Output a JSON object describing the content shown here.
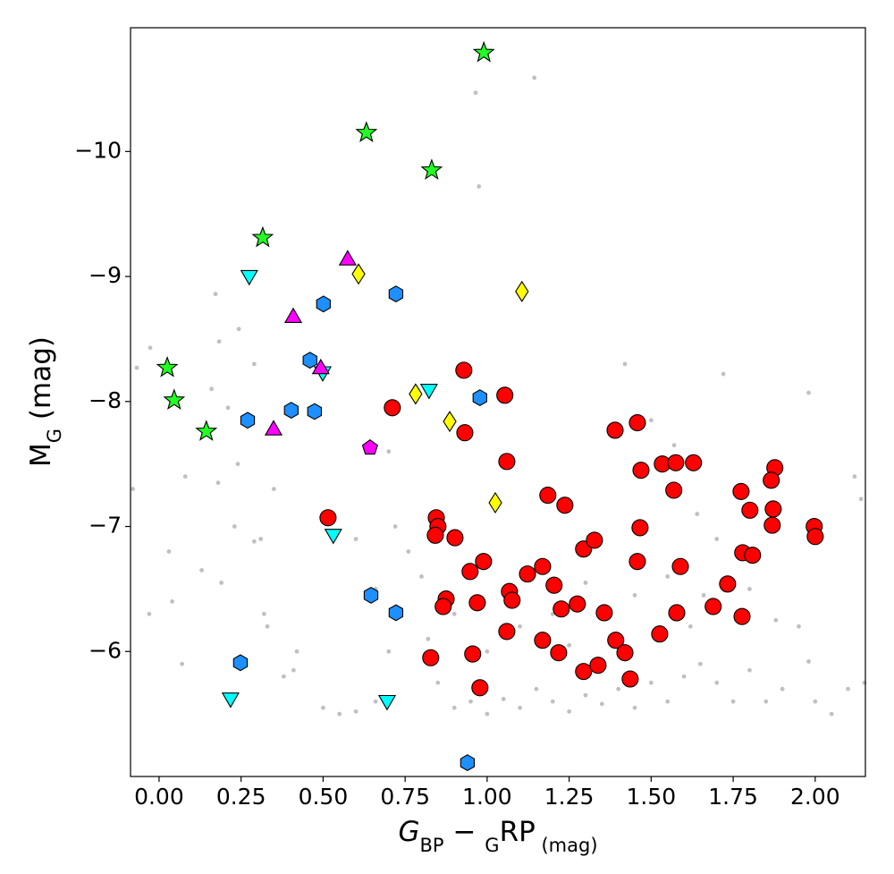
{
  "chart_data": {
    "type": "scatter",
    "xlabel_parts": [
      "G",
      "BP",
      " − ",
      "G",
      "RP",
      " (mag)"
    ],
    "ylabel_parts": [
      "M",
      "G",
      " (mag)"
    ],
    "xlim": [
      -0.087,
      2.153
    ],
    "ylim": [
      -5.0,
      -10.99
    ],
    "xticks": [
      {
        "value": 0,
        "label": "0.00"
      },
      {
        "value": 0.25,
        "label": "0.25"
      },
      {
        "value": 0.5,
        "label": "0.50"
      },
      {
        "value": 0.75,
        "label": "0.75"
      },
      {
        "value": 1,
        "label": "1.00"
      },
      {
        "value": 1.25,
        "label": "1.25"
      },
      {
        "value": 1.5,
        "label": "1.50"
      },
      {
        "value": 1.75,
        "label": "1.75"
      },
      {
        "value": 2,
        "label": "2.00"
      }
    ],
    "yticks": [
      {
        "value": -10,
        "label": "−10"
      },
      {
        "value": -9,
        "label": "−9"
      },
      {
        "value": -8,
        "label": "−8"
      },
      {
        "value": -7,
        "label": "−7"
      },
      {
        "value": -6,
        "label": "−6"
      }
    ],
    "series": [
      {
        "color": "#c0c0c0",
        "marker": "dot",
        "x": [
          0.965,
          1.144,
          0.975,
          0.172,
          0.183,
          -0.027,
          -0.068,
          0.243,
          0.29,
          0.16,
          0.21,
          0.08,
          0.18,
          0.24,
          0.35,
          -0.08,
          0.23,
          0.29,
          0.31,
          0.19,
          0.13,
          0.04,
          -0.03,
          0.32,
          0.33,
          0.07,
          0.42,
          0.41,
          0.38,
          0.5,
          0.55,
          0.6,
          0.66,
          0.7,
          0.66,
          0.6,
          0.7,
          0.72,
          0.76,
          0.8,
          0.82,
          0.85,
          0.9,
          0.95,
          1.0,
          1.05,
          1.1,
          1.15,
          1.2,
          1.25,
          1.3,
          1.35,
          1.4,
          1.45,
          1.5,
          1.55,
          1.6,
          1.65,
          1.7,
          1.75,
          1.8,
          1.85,
          1.9,
          2.0,
          2.05,
          2.1,
          2.15,
          1.98,
          1.95,
          2.12,
          2.14,
          1.98,
          1.72,
          1.42,
          1.5,
          1.57,
          1.64,
          1.7,
          1.3,
          1.2,
          1.1,
          1.0,
          0.9,
          1.25,
          1.45,
          1.55,
          1.62,
          1.66,
          1.8,
          1.88,
          0.03
        ],
        "values": [
          -10.47,
          -10.59,
          -9.72,
          -8.86,
          -8.48,
          -8.43,
          -8.27,
          -8.58,
          -8.3,
          -8.1,
          -7.95,
          -7.4,
          -7.35,
          -7.5,
          -7.3,
          -7.3,
          -7.0,
          -6.88,
          -6.9,
          -6.55,
          -6.65,
          -6.4,
          -6.3,
          -6.3,
          -6.2,
          -5.9,
          -6.0,
          -5.85,
          -5.8,
          -5.55,
          -5.5,
          -5.52,
          -5.6,
          -6.0,
          -6.5,
          -6.9,
          -7.6,
          -7.0,
          -6.8,
          -6.6,
          -6.1,
          -5.75,
          -5.55,
          -5.6,
          -5.5,
          -5.62,
          -5.55,
          -5.7,
          -5.6,
          -5.52,
          -5.65,
          -5.58,
          -5.7,
          -5.55,
          -5.75,
          -5.6,
          -5.8,
          -5.9,
          -5.75,
          -5.6,
          -5.85,
          -5.6,
          -5.7,
          -5.6,
          -5.5,
          -5.7,
          -5.75,
          -5.92,
          -6.2,
          -7.4,
          -7.22,
          -8.07,
          -8.22,
          -8.3,
          -7.85,
          -7.65,
          -7.1,
          -6.9,
          -6.55,
          -6.3,
          -6.2,
          -6.0,
          -6.3,
          -6.05,
          -6.45,
          -6.6,
          -6.2,
          -6.45,
          -6.5,
          -6.25,
          -6.8
        ]
      },
      {
        "color": "#ff0000",
        "marker": "circle",
        "x": [
          0.711,
          0.929,
          1.054,
          0.932,
          1.06,
          0.515,
          0.845,
          0.85,
          0.842,
          0.902,
          0.989,
          0.948,
          0.875,
          0.866,
          0.97,
          1.068,
          1.076,
          1.06,
          0.956,
          0.828,
          0.978,
          1.185,
          1.237,
          1.123,
          1.169,
          1.204,
          1.226,
          1.275,
          1.294,
          1.327,
          1.357,
          1.169,
          1.218,
          1.294,
          1.338,
          1.392,
          1.42,
          1.436,
          1.39,
          1.458,
          1.469,
          1.466,
          1.458,
          1.534,
          1.575,
          1.629,
          1.569,
          1.589,
          1.578,
          1.526,
          1.689,
          1.733,
          1.774,
          1.801,
          1.779,
          1.809,
          1.777,
          1.877,
          1.866,
          1.872,
          1.869,
          1.997,
          2.0
        ],
        "values": [
          -7.95,
          -8.25,
          -8.05,
          -7.75,
          -7.52,
          -7.07,
          -7.07,
          -7.0,
          -6.93,
          -6.91,
          -6.72,
          -6.64,
          -6.42,
          -6.36,
          -6.39,
          -6.48,
          -6.41,
          -6.16,
          -5.98,
          -5.95,
          -5.71,
          -7.25,
          -7.17,
          -6.62,
          -6.68,
          -6.53,
          -6.34,
          -6.38,
          -6.82,
          -6.89,
          -6.31,
          -6.09,
          -5.99,
          -5.84,
          -5.89,
          -6.09,
          -5.99,
          -5.78,
          -7.77,
          -7.83,
          -7.45,
          -6.99,
          -6.72,
          -7.5,
          -7.51,
          -7.51,
          -7.29,
          -6.68,
          -6.31,
          -6.14,
          -6.36,
          -6.54,
          -7.28,
          -7.13,
          -6.79,
          -6.77,
          -6.28,
          -7.47,
          -7.37,
          -7.14,
          -7.01,
          -7.0,
          -6.92
        ]
      },
      {
        "color": "#1e8fff",
        "marker": "hexagon",
        "x": [
          0.722,
          0.501,
          0.46,
          0.978,
          0.27,
          0.403,
          0.474,
          0.646,
          0.722,
          0.248,
          0.94
        ],
        "values": [
          -8.86,
          -8.78,
          -8.33,
          -8.03,
          -7.85,
          -7.93,
          -7.92,
          -6.45,
          -6.31,
          -5.91,
          -5.11
        ]
      },
      {
        "color": "#00ffff",
        "marker": "triangle-down",
        "x": [
          0.275,
          0.499,
          0.823,
          0.531,
          0.218,
          0.695
        ],
        "values": [
          -9.01,
          -8.24,
          -8.1,
          -6.94,
          -5.63,
          -5.61
        ]
      },
      {
        "color": "#ffff00",
        "marker": "diamond",
        "x": [
          0.608,
          1.106,
          0.782,
          0.886,
          1.025
        ],
        "values": [
          -9.02,
          -8.88,
          -8.06,
          -7.84,
          -7.19
        ]
      },
      {
        "color": "#ff00ff",
        "marker": "triangle-up",
        "x": [
          0.575,
          0.409,
          0.493,
          0.349
        ],
        "values": [
          -9.13,
          -8.67,
          -8.26,
          -7.77
        ]
      },
      {
        "color": "#ff00ff",
        "marker": "pentagon",
        "x": [
          0.643
        ],
        "values": [
          -7.63
        ]
      },
      {
        "color": "#22ff22",
        "marker": "star",
        "x": [
          0.99,
          0.632,
          0.831,
          0.316,
          0.025,
          0.046,
          0.144
        ],
        "values": [
          -10.79,
          -10.15,
          -9.85,
          -9.31,
          -8.27,
          -8.01,
          -7.76
        ]
      }
    ]
  }
}
